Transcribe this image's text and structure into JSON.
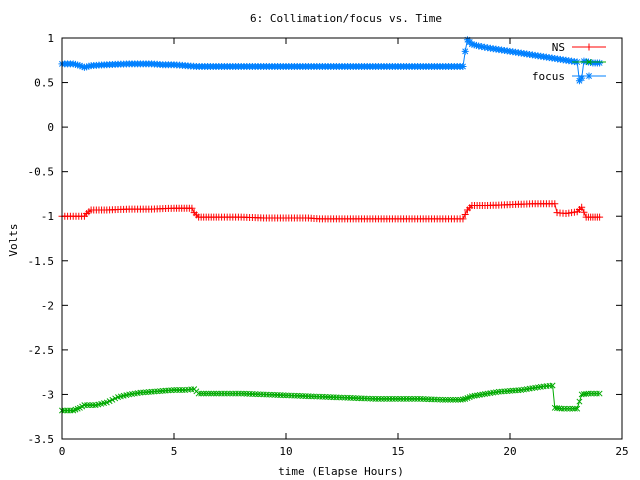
{
  "chart_data": {
    "type": "line",
    "title": "6: Collimation/focus vs. Time",
    "xlabel": "time (Elapse Hours)",
    "ylabel": "Volts",
    "xlim": [
      0,
      25
    ],
    "ylim": [
      -3.5,
      1
    ],
    "xticks": [
      0,
      5,
      10,
      15,
      20,
      25
    ],
    "yticks": [
      -3.5,
      -3,
      -2.5,
      -2,
      -1.5,
      -1,
      -0.5,
      0,
      0.5,
      1
    ],
    "xtick_labels": [
      "0",
      "5",
      "10",
      "15",
      "20",
      "25"
    ],
    "ytick_labels": [
      "-3.5",
      "-3",
      "-2.5",
      "-2",
      "-1.5",
      "-1",
      "-0.5",
      "0",
      "0.5",
      "1"
    ],
    "grid": false,
    "legend_position": "top-right",
    "series": [
      {
        "name": "NS",
        "color": "#ff0000",
        "marker": "plus",
        "x": [
          0,
          0.5,
          1.0,
          1.1,
          1.3,
          2.0,
          3.0,
          4.0,
          5.0,
          5.8,
          5.9,
          6.1,
          7.0,
          8.0,
          9.0,
          10.0,
          11.0,
          11.5,
          12.0,
          13.0,
          14.0,
          15.0,
          16.0,
          17.0,
          17.9,
          18.1,
          18.3,
          19.0,
          20.0,
          21.0,
          21.5,
          22.0,
          22.1,
          22.5,
          23.0,
          23.2,
          23.4,
          23.6,
          23.8,
          24.0
        ],
        "y": [
          -1.0,
          -1.0,
          -1.0,
          -0.97,
          -0.93,
          -0.93,
          -0.92,
          -0.92,
          -0.91,
          -0.91,
          -0.96,
          -1.01,
          -1.01,
          -1.01,
          -1.02,
          -1.02,
          -1.02,
          -1.03,
          -1.03,
          -1.03,
          -1.03,
          -1.03,
          -1.03,
          -1.03,
          -1.03,
          -0.93,
          -0.88,
          -0.88,
          -0.87,
          -0.86,
          -0.86,
          -0.86,
          -0.96,
          -0.97,
          -0.95,
          -0.9,
          -1.01,
          -1.01,
          -1.01,
          -1.01
        ]
      },
      {
        "name": "",
        "color": "#00aa00",
        "marker": "cross",
        "x": [
          0,
          0.5,
          0.8,
          1.0,
          1.5,
          2.0,
          2.5,
          3.0,
          3.5,
          4.0,
          4.5,
          5.0,
          5.5,
          5.9,
          6.1,
          7.0,
          8.0,
          9.0,
          10.0,
          11.0,
          12.0,
          13.0,
          14.0,
          15.0,
          16.0,
          17.0,
          17.8,
          18.0,
          18.3,
          19.0,
          19.5,
          20.0,
          20.5,
          21.0,
          21.5,
          21.9,
          22.0,
          22.3,
          22.8,
          23.0,
          23.2,
          23.5,
          24.0
        ],
        "y": [
          -3.18,
          -3.18,
          -3.15,
          -3.12,
          -3.12,
          -3.09,
          -3.03,
          -3.0,
          -2.98,
          -2.97,
          -2.96,
          -2.95,
          -2.95,
          -2.94,
          -2.99,
          -2.99,
          -2.99,
          -3.0,
          -3.01,
          -3.02,
          -3.03,
          -3.04,
          -3.05,
          -3.05,
          -3.05,
          -3.06,
          -3.06,
          -3.05,
          -3.02,
          -2.99,
          -2.97,
          -2.96,
          -2.95,
          -2.93,
          -2.91,
          -2.9,
          -3.15,
          -3.16,
          -3.16,
          -3.16,
          -3.0,
          -2.99,
          -2.99
        ]
      },
      {
        "name": "focus",
        "color": "#0080ff",
        "marker": "star",
        "x": [
          0,
          0.5,
          0.8,
          1.0,
          1.3,
          2.0,
          3.0,
          4.0,
          4.5,
          5.0,
          5.5,
          6.0,
          7.0,
          8.0,
          9.0,
          10.0,
          11.0,
          12.0,
          13.0,
          14.0,
          15.0,
          16.0,
          17.0,
          17.9,
          18.0,
          18.1,
          18.3,
          18.6,
          19.0,
          19.5,
          20.0,
          20.5,
          21.0,
          21.5,
          22.0,
          22.5,
          23.0,
          23.1,
          23.2,
          23.3,
          23.5,
          23.7,
          24.0
        ],
        "y": [
          0.71,
          0.71,
          0.69,
          0.67,
          0.69,
          0.7,
          0.71,
          0.71,
          0.7,
          0.7,
          0.69,
          0.68,
          0.68,
          0.68,
          0.68,
          0.68,
          0.68,
          0.68,
          0.68,
          0.68,
          0.68,
          0.68,
          0.68,
          0.68,
          0.85,
          0.98,
          0.93,
          0.91,
          0.89,
          0.87,
          0.85,
          0.83,
          0.81,
          0.79,
          0.77,
          0.75,
          0.73,
          0.52,
          0.55,
          0.74,
          0.73,
          0.72,
          0.72
        ]
      }
    ]
  }
}
